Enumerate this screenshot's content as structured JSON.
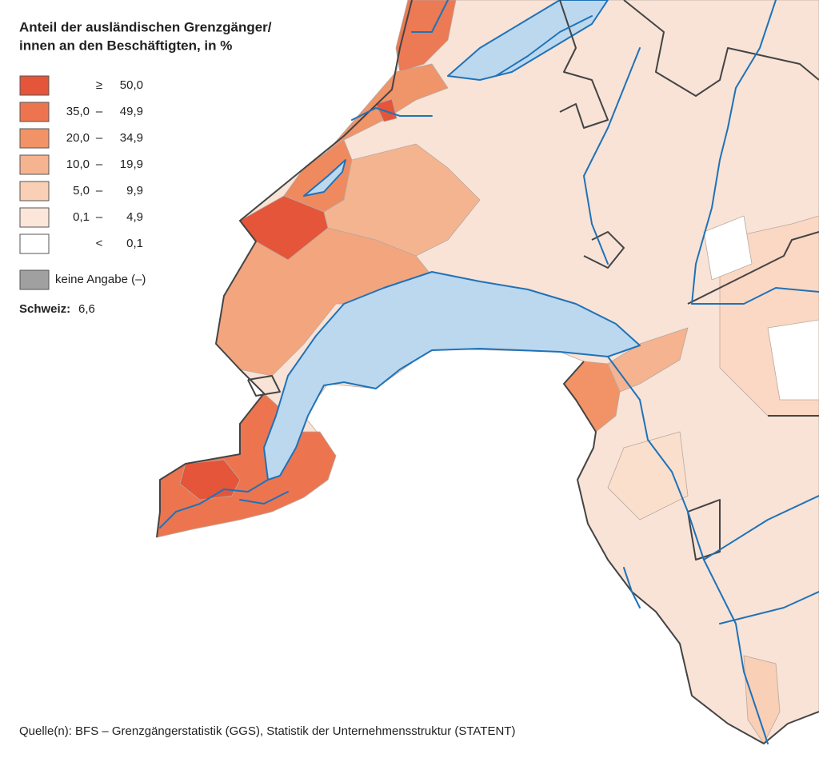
{
  "title": [
    "Anteil der ausländischen  Grenzgänger/",
    "innen an den  Beschäftigten, in %"
  ],
  "legend": {
    "classes": [
      {
        "symbol": "≥",
        "high": "50,0",
        "color": "#e4553a"
      },
      {
        "low": "35,0",
        "symbol": "–",
        "high": "49,9",
        "color": "#ec7550"
      },
      {
        "low": "20,0",
        "symbol": "–",
        "high": "34,9",
        "color": "#f19367"
      },
      {
        "low": "10,0",
        "symbol": "–",
        "high": "19,9",
        "color": "#f5b38f"
      },
      {
        "low": "5,0",
        "symbol": "–",
        "high": "9,9",
        "color": "#f9cfb5"
      },
      {
        "low": "0,1",
        "symbol": "–",
        "high": "4,9",
        "color": "#fce6d9"
      },
      {
        "symbol": "<",
        "high": "0,1",
        "color": "#ffffff"
      }
    ],
    "missing": {
      "label": "keine Angabe (–)",
      "color": "#a0a0a0"
    }
  },
  "summary": {
    "label": "Schweiz:",
    "value": "6,6"
  },
  "source": "Quelle(n): BFS – Grenzgängerstatistik (GGS), Statistik der Unternehmensstruktur (STATENT)"
}
